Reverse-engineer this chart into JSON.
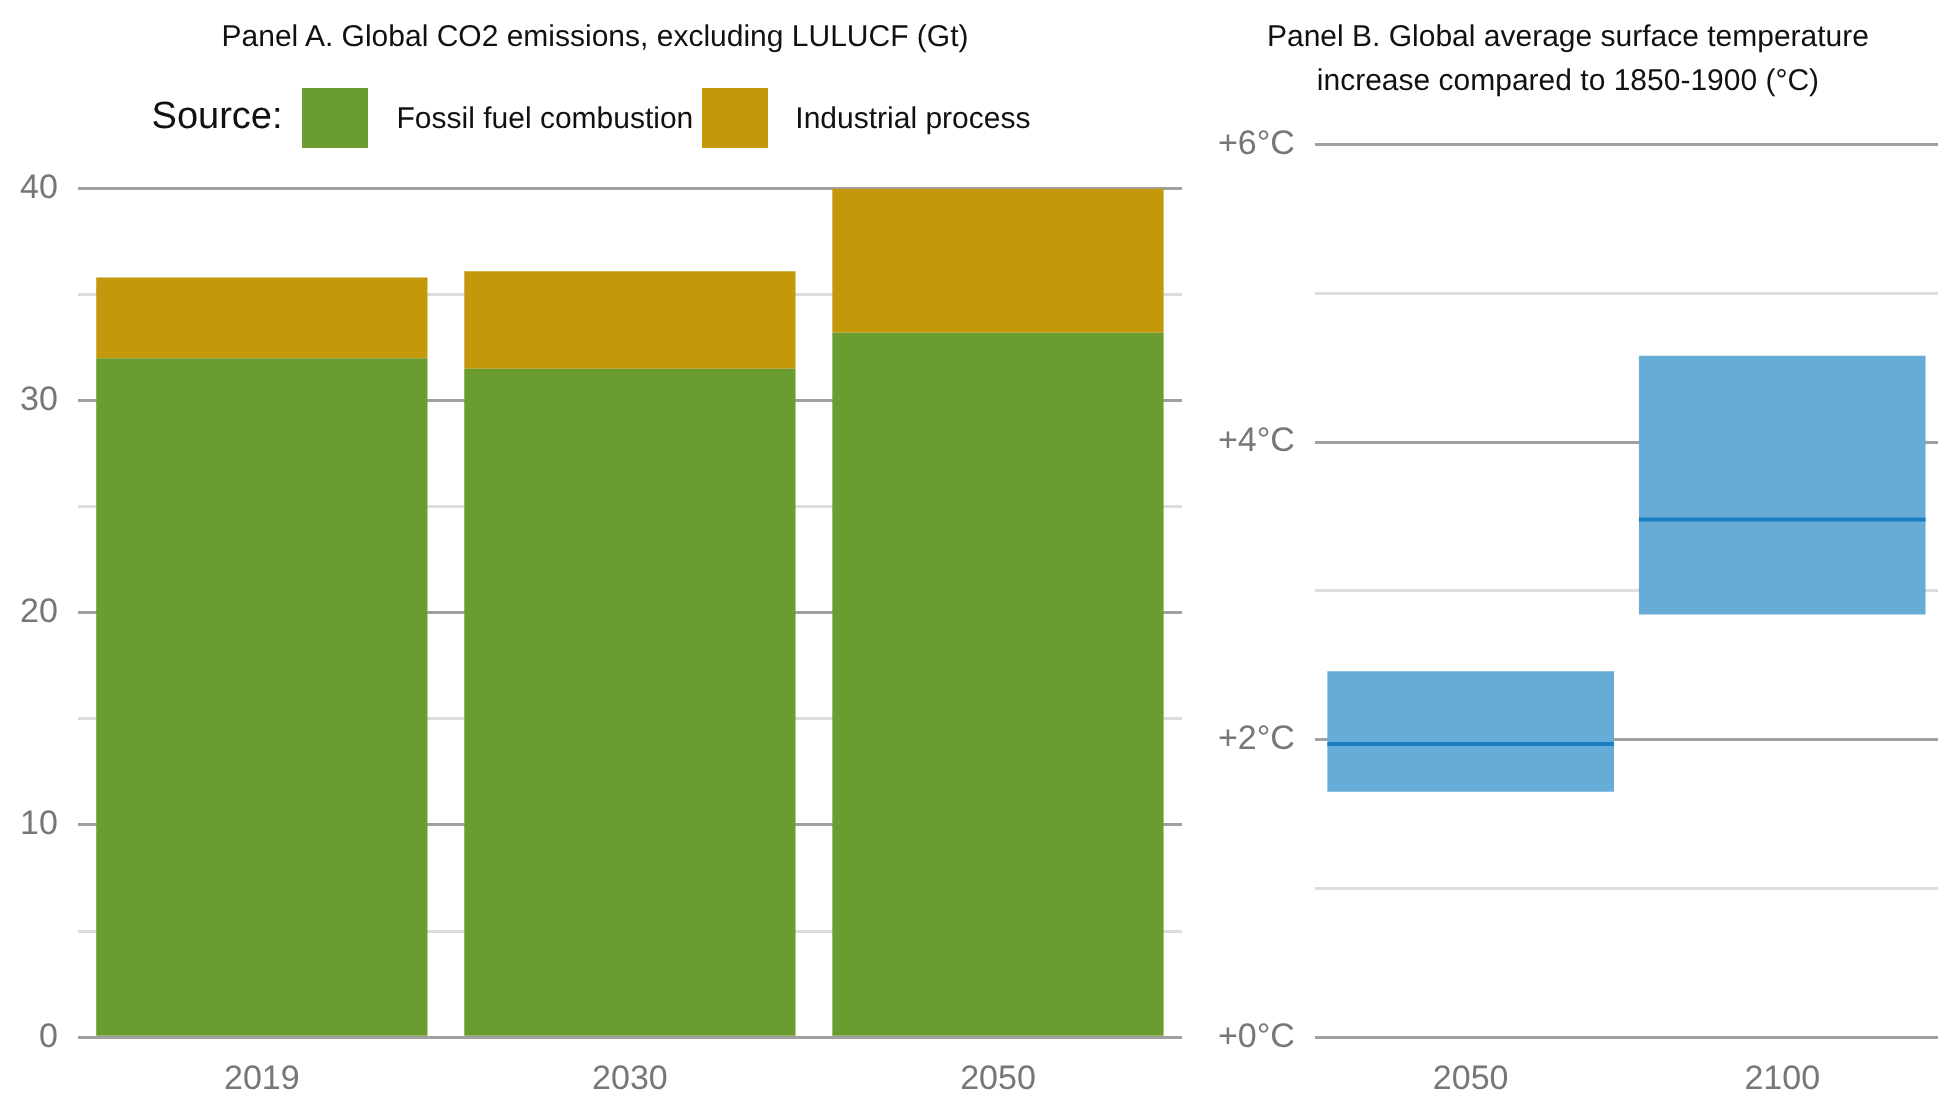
{
  "chart_data": [
    {
      "type": "bar",
      "title": "Panel A. Global CO2 emissions, excluding LULUCF (Gt)",
      "legend_title": "Source:",
      "legend": "top",
      "stacked": true,
      "grid": "y",
      "categories": [
        "2019",
        "2030",
        "2050"
      ],
      "series": [
        {
          "name": "Fossil fuel combustion",
          "color": "#6a9c30",
          "values": [
            32.0,
            31.5,
            33.2
          ]
        },
        {
          "name": "Industrial process",
          "color": "#c5980b",
          "values": [
            3.8,
            4.6,
            6.8
          ]
        }
      ],
      "ylim": [
        0,
        40
      ],
      "yticks": [
        0,
        {
          "value": 5,
          "label": null
        },
        10,
        {
          "value": 15,
          "label": null
        },
        20,
        {
          "value": 25,
          "label": null
        },
        30,
        {
          "value": 35,
          "label": null
        },
        40
      ]
    },
    {
      "type": "box",
      "title": "Panel B. Global average surface temperature increase compared to 1850-1900 (°C)",
      "grid": "y",
      "categories": [
        "2050",
        "2100"
      ],
      "color": "#66acd7",
      "boxes": [
        {
          "low": 1.65,
          "q1": 1.65,
          "median": 1.97,
          "q3": 2.46,
          "high": 2.46
        },
        {
          "low": 2.84,
          "q1": 2.84,
          "median": 3.48,
          "q3": 4.58,
          "high": 4.58
        }
      ],
      "ylim": [
        0,
        6
      ],
      "yticks": [
        {
          "value": 0,
          "label": "+0°C"
        },
        {
          "value": 1,
          "label": null
        },
        {
          "value": 2,
          "label": "+2°C"
        },
        {
          "value": 3,
          "label": null
        },
        {
          "value": 4,
          "label": "+4°C"
        },
        {
          "value": 5,
          "label": null
        },
        {
          "value": 6,
          "label": "+6°C"
        }
      ]
    }
  ]
}
